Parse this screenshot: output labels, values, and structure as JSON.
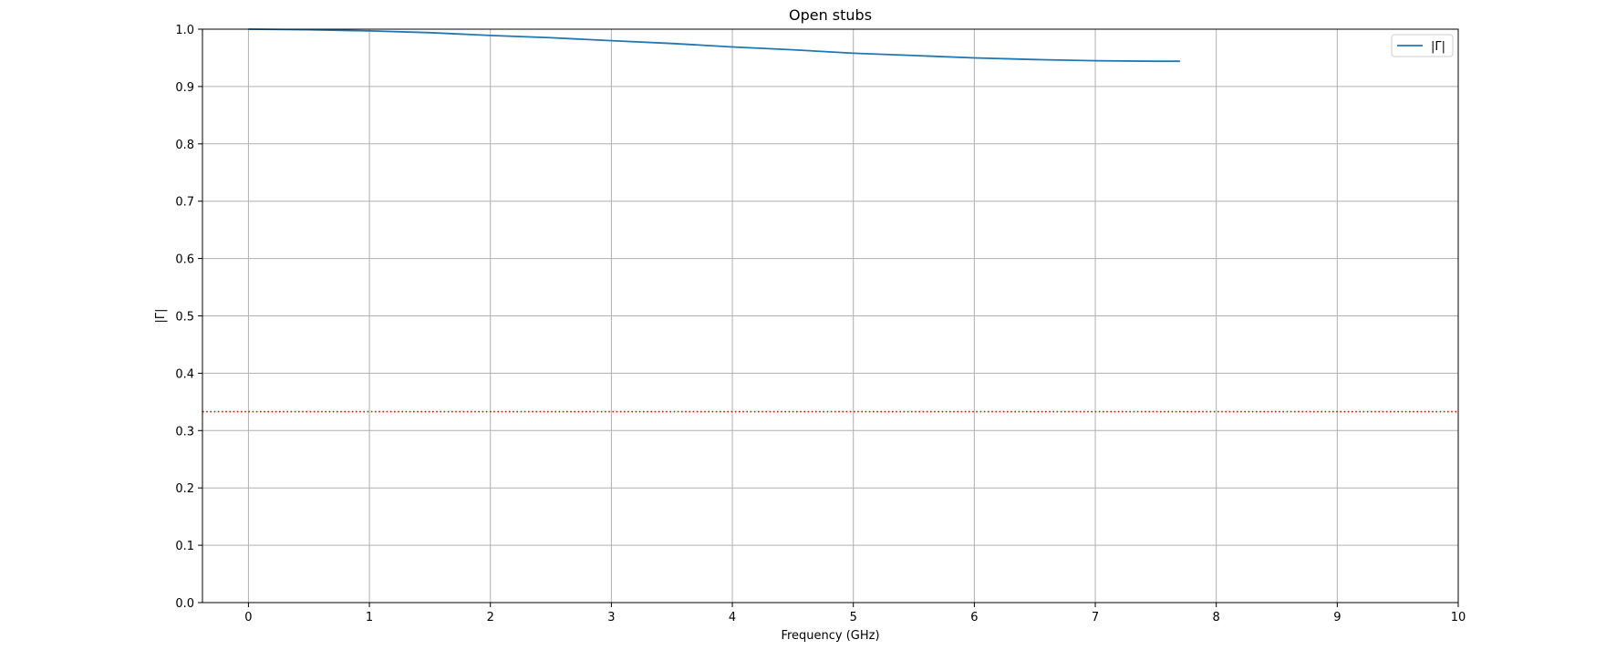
{
  "chart_data": {
    "type": "line",
    "title": "Open stubs",
    "xlabel": "Frequency (GHz)",
    "ylabel": "|Γ|",
    "xlim": [
      -0.38,
      10
    ],
    "ylim": [
      0,
      1
    ],
    "x_ticks": [
      "0",
      "1",
      "2",
      "3",
      "4",
      "5",
      "6",
      "7",
      "8",
      "9",
      "10"
    ],
    "y_ticks": [
      "0.0",
      "0.1",
      "0.2",
      "0.3",
      "0.4",
      "0.5",
      "0.6",
      "0.7",
      "0.8",
      "0.9",
      "1.0"
    ],
    "grid": true,
    "legend_position": "top-right",
    "series": [
      {
        "name": "|Γ|",
        "color": "#1f77b4",
        "x": [
          0,
          0.5,
          1,
          1.5,
          2,
          2.5,
          3,
          3.5,
          4,
          4.5,
          5,
          5.5,
          6,
          6.5,
          7,
          7.5,
          7.7
        ],
        "y": [
          1.0,
          0.999,
          0.997,
          0.994,
          0.989,
          0.985,
          0.98,
          0.975,
          0.969,
          0.964,
          0.958,
          0.954,
          0.95,
          0.947,
          0.945,
          0.944,
          0.944
        ]
      }
    ],
    "reference_lines": [
      {
        "orientation": "horizontal",
        "y": 0.333,
        "color": "#ff0000",
        "style": "dotted"
      }
    ]
  }
}
